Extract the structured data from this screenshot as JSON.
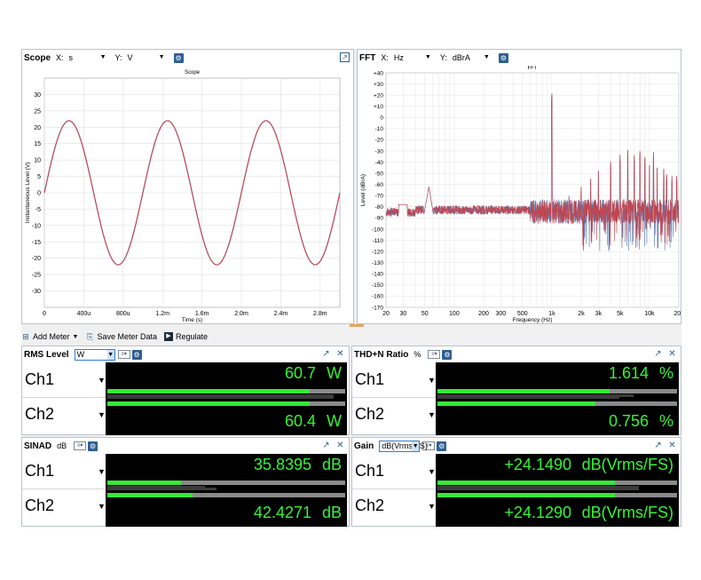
{
  "scope": {
    "title": "Scope",
    "x_label": "X:",
    "x_value": "s",
    "y_label": "Y:",
    "y_value": "V",
    "chart_title": "Scope",
    "chart_data": {
      "type": "line",
      "xlabel": "Time (s)",
      "ylabel": "Instantaneous Level (V)",
      "xlim": [
        0,
        0.003
      ],
      "ylim": [
        -35,
        35
      ],
      "x_ticks": [
        "0",
        "400u",
        "800u",
        "1.2m",
        "1.6m",
        "2.0m",
        "2.4m",
        "2.8m"
      ],
      "y_ticks": [
        "30",
        "25",
        "20",
        "15",
        "10",
        "5",
        "0",
        "-5",
        "-10",
        "-15",
        "-20",
        "-25",
        "-30"
      ],
      "series": [
        {
          "color": "#c0454f",
          "amplitude": 22,
          "frequency": 1000,
          "phase_deg": 0
        },
        {
          "color": "#5a78b0",
          "amplitude": 22,
          "frequency": 1000,
          "phase_deg": 0
        }
      ]
    }
  },
  "fft": {
    "title": "FFT",
    "x_label": "X:",
    "x_value": "Hz",
    "y_label": "Y:",
    "y_value": "dBrA",
    "chart_title": "FFT",
    "chart_data": {
      "type": "line",
      "xlabel": "Frequency (Hz)",
      "ylabel": "Level (dBrA)",
      "x_scale": "log",
      "xlim": [
        20,
        20000
      ],
      "ylim": [
        -170,
        40
      ],
      "x_ticks": [
        "20",
        "30",
        "50",
        "100",
        "200",
        "300",
        "500",
        "1k",
        "2k",
        "3k",
        "5k",
        "10k",
        "20k"
      ],
      "y_ticks": [
        "+40",
        "+30",
        "+20",
        "+10",
        "0",
        "-10",
        "-20",
        "-30",
        "-40",
        "-50",
        "-60",
        "-70",
        "-80",
        "-90",
        "-100",
        "-110",
        "-120",
        "-130",
        "-140",
        "-150",
        "-160",
        "-170"
      ],
      "fundamental_hz": 1000,
      "fundamental_level": 22,
      "noise_floor": -82,
      "harmonics": [
        {
          "f": 1250,
          "level": -88
        },
        {
          "f": 1500,
          "level": -70
        },
        {
          "f": 2000,
          "level": -60
        },
        {
          "f": 2500,
          "level": -52
        },
        {
          "f": 3000,
          "level": -45
        },
        {
          "f": 4000,
          "level": -38
        },
        {
          "f": 5000,
          "level": -33
        },
        {
          "f": 6000,
          "level": -29
        },
        {
          "f": 7000,
          "level": -32
        },
        {
          "f": 8000,
          "level": -28
        },
        {
          "f": 9000,
          "level": -34
        },
        {
          "f": 10000,
          "level": -40
        },
        {
          "f": 11000,
          "level": -30
        },
        {
          "f": 12000,
          "level": -42
        },
        {
          "f": 14000,
          "level": -44
        },
        {
          "f": 15000,
          "level": -49
        },
        {
          "f": 17000,
          "level": -52
        },
        {
          "f": 19000,
          "level": -50
        }
      ],
      "series_colors": [
        "#c0454f",
        "#5a78b0"
      ]
    }
  },
  "toolbar": {
    "add_meter": "Add Meter",
    "save_meter_data": "Save Meter Data",
    "regulate": "Regulate"
  },
  "meters": {
    "rms": {
      "title": "RMS Level",
      "unit": "W",
      "ch1_label": "Ch1",
      "ch2_label": "Ch2",
      "ch1_value": "60.7",
      "ch2_value": "60.4",
      "ch1_unit": "W",
      "ch2_unit": "W",
      "ch1_fill": 0.85,
      "ch2_fill": 0.85
    },
    "thd": {
      "title": "THD+N Ratio",
      "unit": "%",
      "ch1_label": "Ch1",
      "ch2_label": "Ch2",
      "ch1_value": "1.614",
      "ch2_value": "0.756",
      "ch1_unit": "%",
      "ch2_unit": "%",
      "ch1_fill": 0.72,
      "ch2_fill": 0.66
    },
    "sinad": {
      "title": "SINAD",
      "unit": "dB",
      "ch1_label": "Ch1",
      "ch2_label": "Ch2",
      "ch1_value": "35.8395",
      "ch2_value": "42.4271",
      "ch1_unit": "dB",
      "ch2_unit": "dB",
      "ch1_fill": 0.31,
      "ch2_fill": 0.36
    },
    "gain": {
      "title": "Gain",
      "unit": "dB(Vrms/FS)",
      "ch1_label": "Ch1",
      "ch2_label": "Ch2",
      "ch1_value": "+24.1490",
      "ch2_value": "+24.1290",
      "ch1_unit": "dB(Vrms/FS)",
      "ch2_unit": "dB(Vrms/FS)",
      "ch1_fill": 0.74,
      "ch2_fill": 0.74
    }
  }
}
